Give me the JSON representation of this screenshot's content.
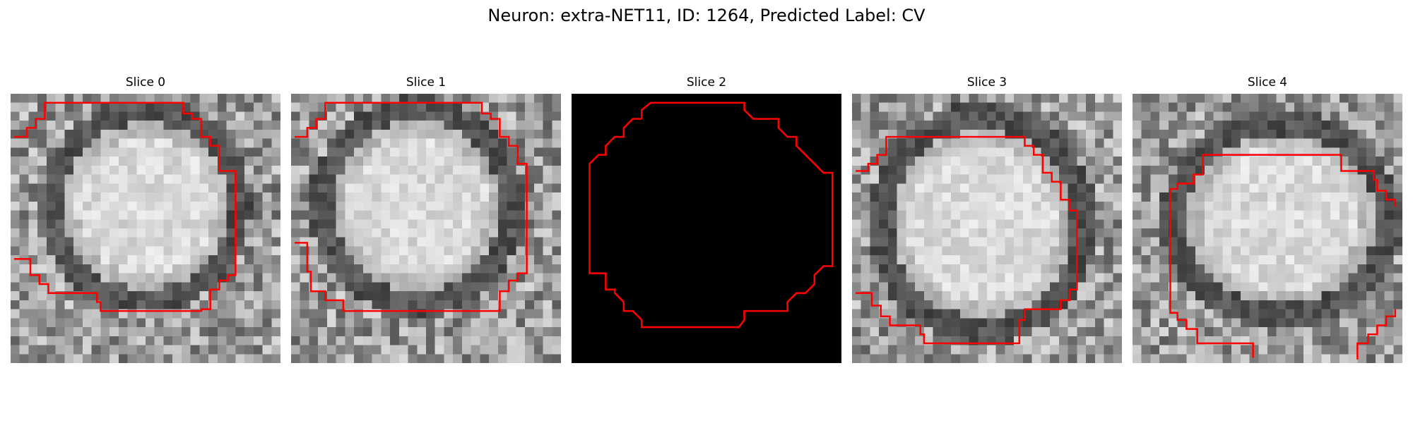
{
  "figure": {
    "title": "Neuron: extra-NET11, ID: 1264, Predicted Label: CV",
    "contour_color": "#ff0000",
    "panels": [
      {
        "title": "Slice 0",
        "image": "grayscale EM micrograph of a cell body with a dark membrane ring",
        "blank": false
      },
      {
        "title": "Slice 1",
        "image": "grayscale EM micrograph of a cell body with a dark membrane ring",
        "blank": false
      },
      {
        "title": "Slice 2",
        "image": "solid black frame",
        "blank": true
      },
      {
        "title": "Slice 3",
        "image": "grayscale EM micrograph of a cell body with a dark membrane ring",
        "blank": false
      },
      {
        "title": "Slice 4",
        "image": "grayscale EM micrograph of a cell body with a dark membrane ring",
        "blank": false
      }
    ]
  }
}
